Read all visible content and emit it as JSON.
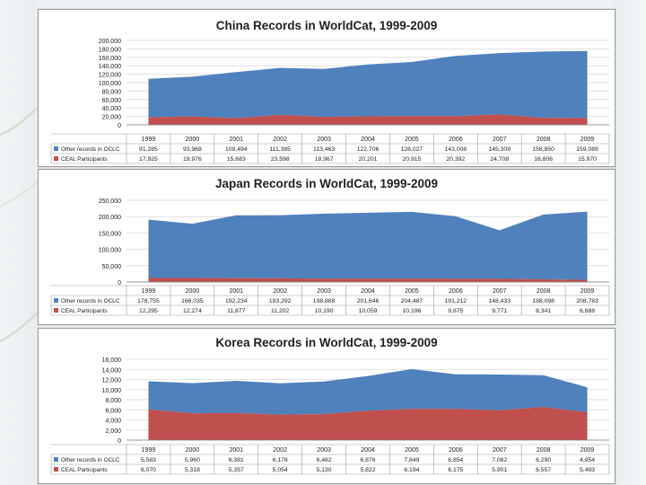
{
  "colors": {
    "other_records": "#4f81bd",
    "ceal": "#c0504d",
    "grid": "#d9d9d9",
    "axis_text": "#222222",
    "title": "#1f1f1f"
  },
  "chart_data": [
    {
      "type": "area",
      "title": "China Records in WorldCat, 1999-2009",
      "categories": [
        "1999",
        "2000",
        "2001",
        "2002",
        "2003",
        "2004",
        "2005",
        "2006",
        "2007",
        "2008",
        "2009"
      ],
      "y_ticks": [
        "200,000",
        "180,000",
        "160,000",
        "140,000",
        "120,000",
        "100,000",
        "80,000",
        "60,000",
        "40,000",
        "20,000",
        "0"
      ],
      "ylim": [
        0,
        200000
      ],
      "series": [
        {
          "name": "Other records in OCLC",
          "color_key": "other_records",
          "values": [
            91285,
            93968,
            109494,
            111385,
            113463,
            122706,
            128027,
            143008,
            145309,
            156850,
            159089
          ],
          "labels": [
            "91,285",
            "93,968",
            "109,494",
            "111,385",
            "113,463",
            "122,706",
            "128,027",
            "143,008",
            "145,309",
            "156,850",
            "159,089"
          ]
        },
        {
          "name": "CEAL Participants",
          "color_key": "ceal",
          "values": [
            17925,
            19976,
            15683,
            23598,
            18967,
            20201,
            20915,
            20392,
            24708,
            16806,
            15970
          ],
          "labels": [
            "17,925",
            "19,976",
            "15,683",
            "23,598",
            "18,967",
            "20,201",
            "20,915",
            "20,392",
            "24,708",
            "16,806",
            "15,970"
          ]
        }
      ]
    },
    {
      "type": "area",
      "title": "Japan Records in WorldCat, 1999-2009",
      "categories": [
        "1999",
        "2000",
        "2001",
        "2002",
        "2003",
        "2004",
        "2005",
        "2006",
        "2007",
        "2008",
        "2009"
      ],
      "y_ticks": [
        "250,000",
        "200,000",
        "150,000",
        "100,000",
        "50,000",
        "0"
      ],
      "ylim": [
        0,
        250000
      ],
      "series": [
        {
          "name": "Other records in OCLC",
          "color_key": "other_records",
          "values": [
            178755,
            166035,
            192234,
            193292,
            198888,
            201646,
            204487,
            191212,
            148433,
            198098,
            208783
          ],
          "labels": [
            "178,755",
            "166,035",
            "192,234",
            "193,292",
            "198,888",
            "201,646",
            "204,487",
            "191,212",
            "148,433",
            "198,098",
            "208,783"
          ]
        },
        {
          "name": "CEAL Participants",
          "color_key": "ceal",
          "values": [
            12295,
            12274,
            11877,
            11202,
            10190,
            10059,
            10196,
            9875,
            9771,
            8341,
            6688
          ],
          "labels": [
            "12,295",
            "12,274",
            "11,877",
            "11,202",
            "10,190",
            "10,059",
            "10,196",
            "9,875",
            "9,771",
            "8,341",
            "6,688"
          ]
        }
      ]
    },
    {
      "type": "area",
      "title": "Korea Records in WorldCat, 1999-2009",
      "categories": [
        "1999",
        "2000",
        "2001",
        "2002",
        "2003",
        "2004",
        "2005",
        "2006",
        "2007",
        "2008",
        "2009"
      ],
      "y_ticks": [
        "16,000",
        "14,000",
        "12,000",
        "10,000",
        "8,000",
        "6,000",
        "4,000",
        "2,000",
        "0"
      ],
      "ylim": [
        0,
        16000
      ],
      "series": [
        {
          "name": "Other records in OCLC",
          "color_key": "other_records",
          "values": [
            5583,
            5960,
            6381,
            6178,
            6482,
            6876,
            7849,
            6854,
            7082,
            6290,
            4954
          ],
          "labels": [
            "5,583",
            "5,960",
            "6,381",
            "6,178",
            "6,482",
            "6,876",
            "7,849",
            "6,854",
            "7,082",
            "6,290",
            "4,954"
          ]
        },
        {
          "name": "CEAL Participants",
          "color_key": "ceal",
          "values": [
            6070,
            5318,
            5357,
            5054,
            5130,
            5822,
            6194,
            6175,
            5901,
            6557,
            5493
          ],
          "labels": [
            "6,070",
            "5,318",
            "5,357",
            "5,054",
            "5,130",
            "5,822",
            "6,194",
            "6,175",
            "5,901",
            "6,557",
            "5,493"
          ]
        }
      ]
    }
  ]
}
